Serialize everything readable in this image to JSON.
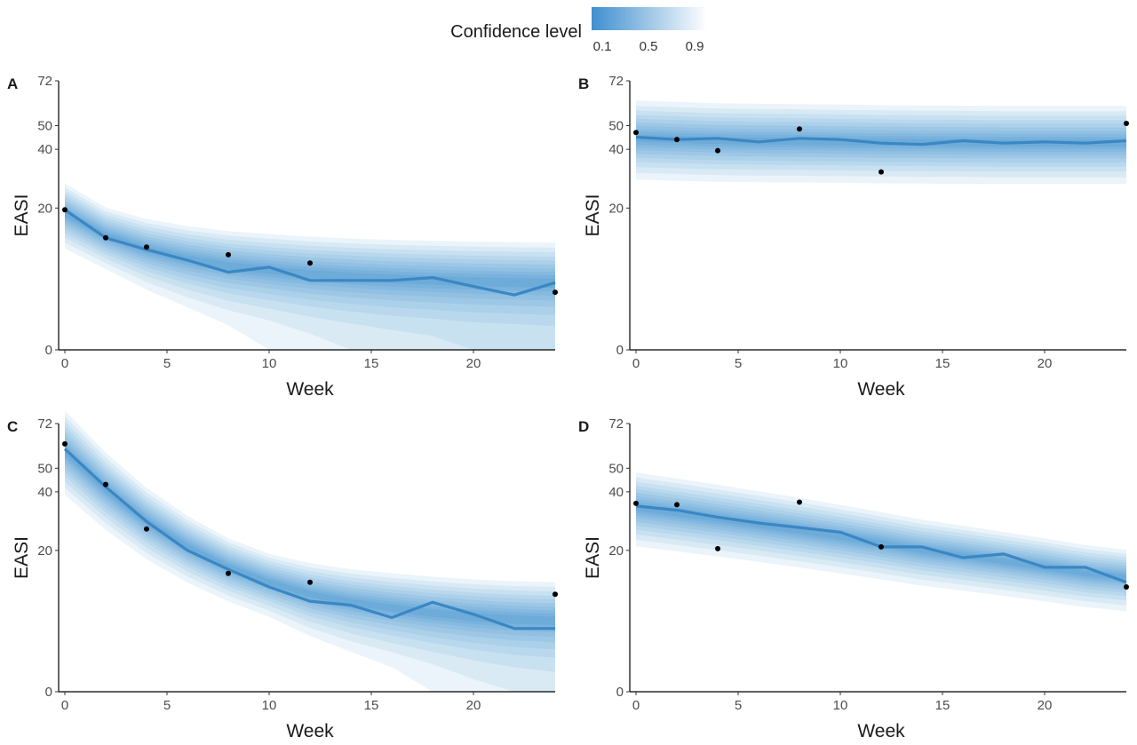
{
  "legend": {
    "title": "Confidence level",
    "ticks": [
      "0.1",
      "0.5",
      "0.9"
    ],
    "color_dark": "#3f8fcf",
    "color_light": "#ffffff"
  },
  "chart_data": [
    {
      "type": "line",
      "panel": "A",
      "xlabel": "Week",
      "ylabel": "EASI",
      "xlim": [
        0,
        24
      ],
      "ylim": [
        0,
        72
      ],
      "xticks": [
        0,
        5,
        10,
        15,
        20
      ],
      "yticks": [
        0,
        20,
        40,
        50,
        72
      ],
      "y_scale": "sqrt",
      "median_line": {
        "x": [
          0,
          2,
          4,
          6,
          8,
          10,
          12,
          14,
          16,
          18,
          20,
          22,
          24
        ],
        "y": [
          19.5,
          12.5,
          10,
          8,
          6,
          6.8,
          4.8,
          4.8,
          4.8,
          5.2,
          4,
          3,
          4.5
        ]
      },
      "band_center": {
        "x": [
          0,
          2,
          4,
          6,
          8,
          10,
          12,
          14,
          16,
          18,
          20,
          22,
          24
        ],
        "y": [
          18.5,
          13,
          10,
          8.2,
          7,
          6.3,
          5.7,
          5.3,
          5,
          4.8,
          4.6,
          4.5,
          4.4
        ]
      },
      "observed": {
        "x": [
          0,
          2,
          4,
          8,
          12,
          24
        ],
        "y": [
          19.5,
          12.5,
          10.5,
          9,
          7.5,
          3.3
        ]
      }
    },
    {
      "type": "line",
      "panel": "B",
      "xlabel": "Week",
      "ylabel": "EASI",
      "xlim": [
        0,
        24
      ],
      "ylim": [
        0,
        72
      ],
      "xticks": [
        0,
        5,
        10,
        15,
        20
      ],
      "yticks": [
        0,
        20,
        40,
        50,
        72
      ],
      "y_scale": "sqrt",
      "median_line": {
        "x": [
          0,
          2,
          4,
          6,
          8,
          10,
          12,
          14,
          16,
          18,
          20,
          22,
          24
        ],
        "y": [
          45,
          44,
          44.5,
          43,
          44.5,
          44,
          42.5,
          42,
          43.5,
          42.5,
          43,
          42.5,
          43.5
        ]
      },
      "band_center": {
        "x": [
          0,
          2,
          4,
          6,
          8,
          10,
          12,
          14,
          16,
          18,
          20,
          22,
          24
        ],
        "y": [
          44.5,
          44,
          43.5,
          43.3,
          43.2,
          43,
          42.8,
          42.7,
          42.6,
          42.5,
          42.5,
          42.5,
          42.5
        ]
      },
      "observed": {
        "x": [
          0,
          2,
          4,
          8,
          12,
          24
        ],
        "y": [
          47,
          44,
          39.5,
          48.5,
          31.5,
          51
        ]
      }
    },
    {
      "type": "line",
      "panel": "C",
      "xlabel": "Week",
      "ylabel": "EASI",
      "xlim": [
        0,
        24
      ],
      "ylim": [
        0,
        72
      ],
      "xticks": [
        0,
        5,
        10,
        15,
        20
      ],
      "yticks": [
        0,
        20,
        40,
        50,
        72
      ],
      "y_scale": "sqrt",
      "median_line": {
        "x": [
          0,
          2,
          4,
          6,
          8,
          10,
          12,
          14,
          16,
          18,
          20,
          22,
          24
        ],
        "y": [
          59,
          42,
          29,
          20,
          15,
          11,
          8.2,
          7.5,
          5.5,
          8,
          6,
          4,
          4
        ]
      },
      "band_center": {
        "x": [
          0,
          2,
          4,
          6,
          8,
          10,
          12,
          14,
          16,
          18,
          20,
          22,
          24
        ],
        "y": [
          58,
          41,
          29,
          21,
          15.5,
          12,
          9.5,
          8,
          7,
          6.2,
          5.6,
          5.2,
          5
        ]
      },
      "observed": {
        "x": [
          0,
          2,
          4,
          8,
          12,
          24
        ],
        "y": [
          61.5,
          43,
          26.5,
          14,
          12,
          9.5
        ]
      }
    },
    {
      "type": "line",
      "panel": "D",
      "xlabel": "Week",
      "ylabel": "EASI",
      "xlim": [
        0,
        24
      ],
      "ylim": [
        0,
        72
      ],
      "xticks": [
        0,
        5,
        10,
        15,
        20
      ],
      "yticks": [
        0,
        20,
        40,
        50,
        72
      ],
      "y_scale": "sqrt",
      "median_line": {
        "x": [
          0,
          2,
          4,
          6,
          8,
          10,
          12,
          14,
          16,
          18,
          20,
          22,
          24
        ],
        "y": [
          34.5,
          33,
          30.5,
          28.5,
          27,
          25.5,
          21,
          21,
          18,
          19,
          15.5,
          15.5,
          12
        ]
      },
      "band_center": {
        "x": [
          0,
          2,
          4,
          6,
          8,
          10,
          12,
          14,
          16,
          18,
          20,
          22,
          24
        ],
        "y": [
          34,
          32,
          30,
          28,
          26,
          24,
          22,
          20,
          18.5,
          17,
          15.5,
          14,
          13
        ]
      },
      "observed": {
        "x": [
          0,
          2,
          4,
          8,
          12,
          24
        ],
        "y": [
          35.5,
          35,
          20.5,
          36,
          21,
          11
        ]
      }
    }
  ]
}
